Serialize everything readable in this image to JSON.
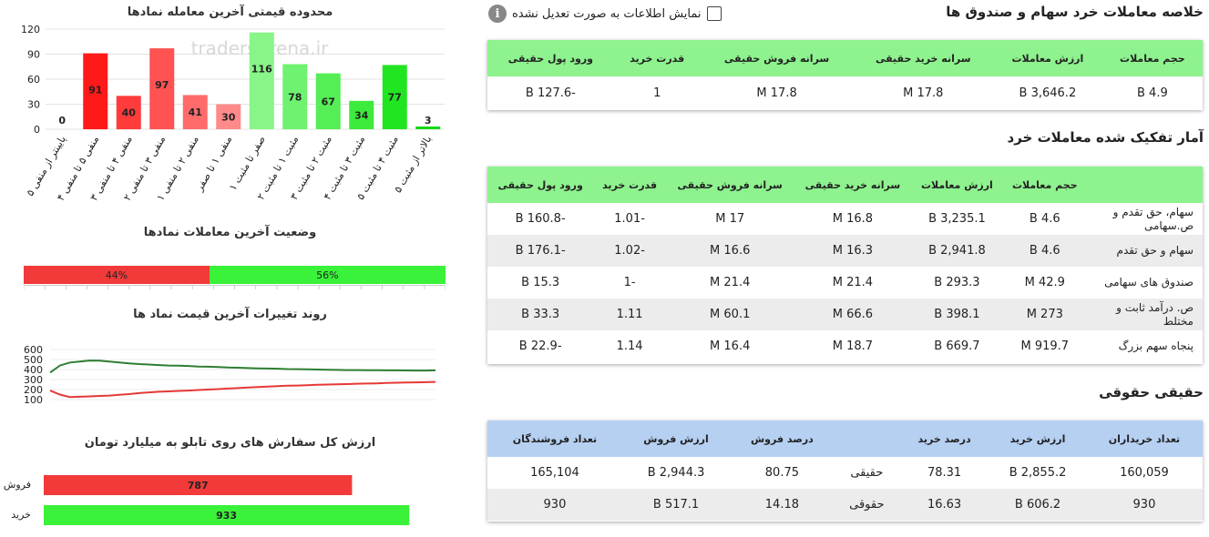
{
  "chart1": {
    "title": "محدوده قیمتی آخرین معامله نمادها",
    "watermark": "tradersArena.ir",
    "chart_data": {
      "type": "bar",
      "title": "محدوده قیمتی آخرین معامله نمادها",
      "categories": [
        "پایینتر از منفی ۵",
        "منفی ۵ تا منفی ۴",
        "منفی ۴ تا منفی ۳",
        "منفی ۳ تا منفی ۲",
        "منفی ۲ تا منفی ۱",
        "منفی ۱ تا صفر",
        "صفر تا مثبت ۱",
        "مثبت ۱ تا مثبت ۲",
        "مثبت ۲ تا مثبت ۳",
        "مثبت ۳ تا مثبت ۴",
        "مثبت ۴ تا مثبت ۵",
        "بالاتر از مثبت ۵"
      ],
      "values": [
        0,
        91,
        40,
        97,
        41,
        30,
        116,
        78,
        67,
        34,
        77,
        3
      ],
      "colors": [
        "#ff1a1a",
        "#ff1a1a",
        "#ff3b3b",
        "#ff5252",
        "#ff6b6b",
        "#ff8a8a",
        "#88f588",
        "#6ff26f",
        "#55ee55",
        "#3ceb3c",
        "#22e522",
        "#15d815"
      ],
      "yticks": [
        0,
        30,
        60,
        90,
        120
      ],
      "ylim": [
        0,
        120
      ]
    }
  },
  "chart2": {
    "title": "وضعیت آخرین معاملات نمادها",
    "neg_pct": 44,
    "pos_pct": 56,
    "neg_label": "44%",
    "pos_label": "56%"
  },
  "chart3": {
    "title": "روند تغییرات آخرین قیمت نماد ها",
    "chart_data": {
      "type": "line",
      "yticks": [
        100,
        200,
        300,
        400,
        500,
        600
      ],
      "ylim": [
        100,
        600
      ],
      "series": [
        {
          "color": "#2e7d32",
          "values": [
            370,
            440,
            470,
            480,
            490,
            488,
            480,
            470,
            462,
            455,
            450,
            445,
            440,
            438,
            435,
            430,
            428,
            425,
            420,
            418,
            415,
            412,
            410,
            408,
            405,
            404,
            402,
            400,
            398,
            396,
            395,
            395,
            394,
            393,
            392,
            392,
            391,
            390,
            390,
            392
          ]
        },
        {
          "color": "#e53935",
          "values": [
            190,
            150,
            125,
            128,
            132,
            136,
            140,
            148,
            155,
            165,
            172,
            178,
            182,
            186,
            190,
            195,
            200,
            205,
            210,
            215,
            220,
            225,
            230,
            234,
            238,
            240,
            244,
            247,
            250,
            252,
            255,
            258,
            260,
            262,
            265,
            268,
            270,
            272,
            274,
            276
          ]
        }
      ]
    }
  },
  "chart4": {
    "title": "ارزش کل سفارش های روی تابلو به میلیارد تومان",
    "chart_data": {
      "type": "bar",
      "categories": [
        "فروش",
        "خرید"
      ],
      "values": [
        787,
        933
      ],
      "colors": [
        "#f23a3a",
        "#39f239"
      ],
      "xlim": [
        0,
        1000
      ]
    }
  },
  "header": {
    "title": "خلاصه معاملات خرد سهام و صندوق ها",
    "checkbox_label": "نمایش اطلاعات به صورت تعدیل نشده"
  },
  "table1": {
    "headers": [
      "حجم معاملات",
      "ارزش معاملات",
      "سرانه خرید حقیقی",
      "سرانه فروش حقیقی",
      "قدرت خرید",
      "ورود پول حقیقی"
    ],
    "row": [
      "4.9 B",
      "3,646.2 B",
      "17.8 M",
      "17.8 M",
      "1",
      "-127.6 B"
    ]
  },
  "section2": {
    "title": "آمار تفکیک شده معاملات خرد"
  },
  "table2": {
    "headers": [
      "",
      "حجم معاملات",
      "ارزش معاملات",
      "سرانه خرید حقیقی",
      "سرانه فروش حقیقی",
      "قدرت خرید",
      "ورود پول حقیقی"
    ],
    "rows": [
      [
        "سهام، حق تقدم و ص.سهامی",
        "4.6 B",
        "3,235.1 B",
        "16.8 M",
        "17 M",
        "-1.01",
        "-160.8 B"
      ],
      [
        "سهام و حق تقدم",
        "4.6 B",
        "2,941.8 B",
        "16.3 M",
        "16.6 M",
        "-1.02",
        "-176.1 B"
      ],
      [
        "صندوق های سهامی",
        "42.9 M",
        "293.3 B",
        "21.4 M",
        "21.4 M",
        "-1",
        "15.3 B"
      ],
      [
        "ص. درآمد ثابت و مختلط",
        "273 M",
        "398.1 B",
        "66.6 M",
        "60.1 M",
        "1.11",
        "33.3 B"
      ],
      [
        "پنجاه سهم بزرگ",
        "919.7 M",
        "669.7 B",
        "18.7 M",
        "16.4 M",
        "1.14",
        "-22.9 B"
      ]
    ]
  },
  "section3": {
    "title": "حقیقی حقوقی"
  },
  "table3": {
    "headers": [
      "تعداد خریداران",
      "ارزش خرید",
      "درصد خرید",
      "",
      "درصد فروش",
      "ارزش فروش",
      "تعداد فروشندگان"
    ],
    "rows": [
      [
        "160,059",
        "2,855.2 B",
        "78.31",
        "حقیقی",
        "80.75",
        "2,944.3 B",
        "165,104"
      ],
      [
        "930",
        "606.2 B",
        "16.63",
        "حقوقی",
        "14.18",
        "517.1 B",
        "930"
      ]
    ]
  }
}
